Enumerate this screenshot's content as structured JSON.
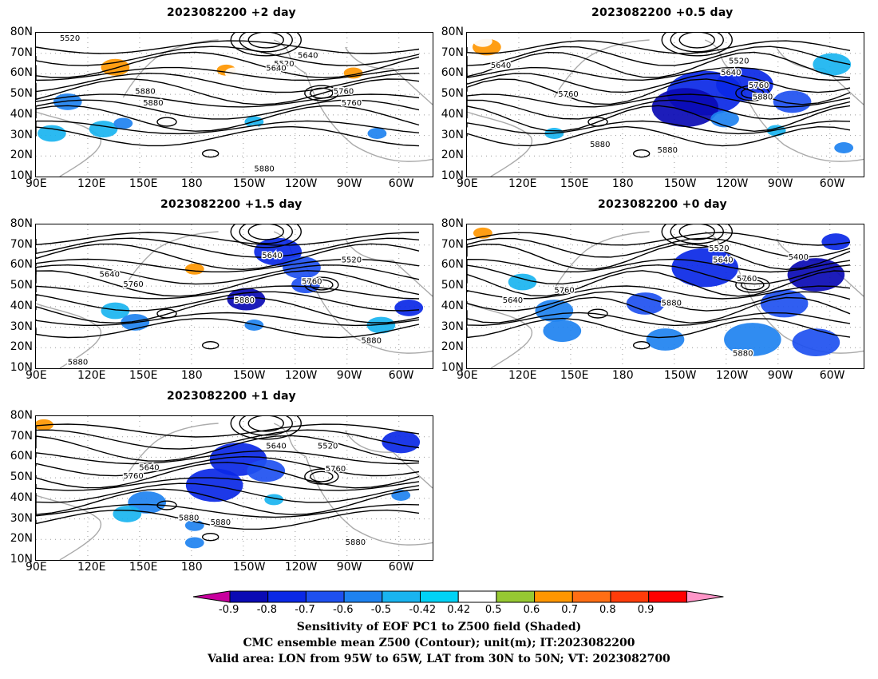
{
  "panels": [
    {
      "id": "p2",
      "title": "2023082200  +2 day"
    },
    {
      "id": "p05",
      "title": "2023082200  +0.5 day"
    },
    {
      "id": "p15",
      "title": "2023082200  +1.5 day"
    },
    {
      "id": "p0",
      "title": "2023082200  +0 day"
    },
    {
      "id": "p1",
      "title": "2023082200  +1 day"
    }
  ],
  "axes": {
    "lat_labels": [
      "80N",
      "70N",
      "60N",
      "50N",
      "40N",
      "30N",
      "20N",
      "10N"
    ],
    "lon_labels": [
      "90E",
      "120E",
      "150E",
      "180",
      "150W",
      "120W",
      "90W",
      "60W"
    ]
  },
  "contour_labels": {
    "p2": [
      "5520",
      "5640",
      "5520",
      "5640",
      "5760",
      "5880",
      "5760",
      "5880",
      "5880"
    ],
    "p05": [
      "5640",
      "5520",
      "5640",
      "5760",
      "5760",
      "5880",
      "5880",
      "5880"
    ],
    "p15": [
      "5640",
      "5640",
      "5520",
      "5760",
      "5760",
      "5880",
      "5880",
      "5880"
    ],
    "p0": [
      "5520",
      "5640",
      "5400",
      "5760",
      "5760",
      "5640",
      "5880",
      "5880"
    ],
    "p1": [
      "5640",
      "5640",
      "5520",
      "5760",
      "5760",
      "5880",
      "5880",
      "5880"
    ]
  },
  "colorbar": {
    "labels": [
      "-0.9",
      "-0.8",
      "-0.7",
      "-0.6",
      "-0.5",
      "-0.42",
      "0.42",
      "0.5",
      "0.6",
      "0.7",
      "0.8",
      "0.9"
    ],
    "colors": [
      "#c8009e",
      "#0a0ab4",
      "#0a28e6",
      "#1e50f0",
      "#1e82f0",
      "#19b4f0",
      "#00d2f5",
      "#ffffff",
      "#96c832",
      "#ff9600",
      "#ff6e14",
      "#ff3c0a",
      "#ff0000",
      "#ff96c8"
    ]
  },
  "caption": {
    "line1": "Sensitivity of EOF PC1 to Z500 field (Shaded)",
    "line2": "CMC ensemble mean Z500 (Contour); unit(m); IT:2023082200",
    "line3": "Valid area: LON from 95W to 65W, LAT from 30N to 50N; VT: 2023082700"
  }
}
